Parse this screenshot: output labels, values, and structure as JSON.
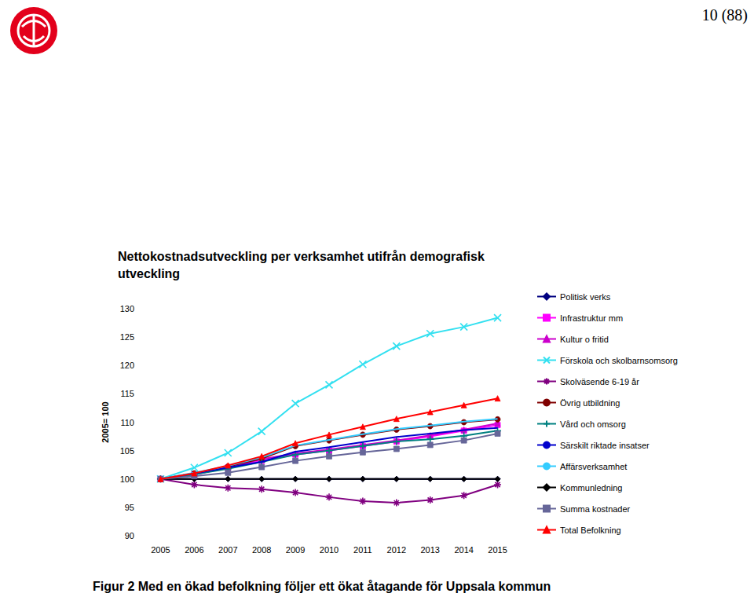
{
  "header": "10 (88)",
  "caption": "Figur 2 Med en ökad befolkning följer ett ökat åtagande för Uppsala kommun",
  "chart_data": {
    "type": "line",
    "title": "Nettokostnadsutveckling per verksamhet utifrån demografisk utveckling",
    "y_label": "2005= 100",
    "categories": [
      "2005",
      "2006",
      "2007",
      "2008",
      "2009",
      "2010",
      "2011",
      "2012",
      "2013",
      "2014",
      "2015"
    ],
    "ylim": [
      90,
      130
    ],
    "yticks": [
      90,
      95,
      100,
      105,
      110,
      115,
      120,
      125,
      130
    ],
    "grid": false,
    "legend": "right",
    "series": [
      {
        "name": "Politisk verks",
        "color": "#000080",
        "marker": "diamond",
        "values": [
          100,
          100,
          100,
          100,
          100,
          100,
          100,
          100,
          100,
          100,
          100
        ]
      },
      {
        "name": "Infrastruktur mm",
        "color": "#ff00ff",
        "marker": "square",
        "values": [
          100,
          100.8,
          102,
          103.2,
          104.3,
          105,
          105.8,
          106.6,
          107.5,
          108.5,
          109.5
        ]
      },
      {
        "name": "Kultur o fritid",
        "color": "#cc00cc",
        "marker": "triangle",
        "values": [
          100,
          100.8,
          102,
          103.5,
          104.5,
          105.2,
          106,
          106.8,
          107.7,
          108.7,
          109.8
        ]
      },
      {
        "name": "Förskola och skolbarnsomsorg",
        "color": "#33e0f0",
        "marker": "x",
        "values": [
          100,
          102,
          104.6,
          108.4,
          113.3,
          116.6,
          120.2,
          123.4,
          125.6,
          126.8,
          128.4
        ]
      },
      {
        "name": "Skolväsende 6-19 år",
        "color": "#800080",
        "marker": "star",
        "values": [
          100,
          99,
          98.4,
          98.2,
          97.6,
          96.8,
          96.1,
          95.8,
          96.3,
          97.1,
          99
        ]
      },
      {
        "name": "Övrig utbildning",
        "color": "#800000",
        "marker": "circle",
        "values": [
          100,
          101,
          102.2,
          103.6,
          105.8,
          106.8,
          107.8,
          108.7,
          109.3,
          110,
          110.5
        ]
      },
      {
        "name": "Vård och omsorg",
        "color": "#008080",
        "marker": "plus",
        "values": [
          100,
          100.8,
          101.8,
          103,
          104.3,
          105,
          105.8,
          106.6,
          107,
          107.6,
          108.5
        ]
      },
      {
        "name": "Särskilt riktade insatser",
        "color": "#0000cc",
        "marker": "none",
        "values": [
          100,
          101,
          102,
          103,
          104.8,
          105.6,
          106.5,
          107.4,
          108,
          108.6,
          109
        ]
      },
      {
        "name": "Affärsverksamhet",
        "color": "#33ccff",
        "marker": "none",
        "values": [
          100,
          101.1,
          102.3,
          103.8,
          105.9,
          106.9,
          107.9,
          108.8,
          109.4,
          110.1,
          110.6
        ]
      },
      {
        "name": "Kommunledning",
        "color": "#000000",
        "marker": "diamond",
        "values": [
          100,
          100,
          100,
          100,
          100,
          100,
          100,
          100,
          100,
          100,
          100
        ]
      },
      {
        "name": "Summa kostnader",
        "color": "#666699",
        "marker": "square",
        "values": [
          100,
          100.5,
          101.1,
          102.1,
          103.2,
          104,
          104.7,
          105.3,
          106,
          106.8,
          108
        ]
      },
      {
        "name": "Total Befolkning",
        "color": "#ff0000",
        "marker": "triangle",
        "values": [
          100,
          101,
          102.4,
          104,
          106.3,
          107.8,
          109.2,
          110.6,
          111.8,
          113,
          114.2
        ]
      }
    ]
  }
}
